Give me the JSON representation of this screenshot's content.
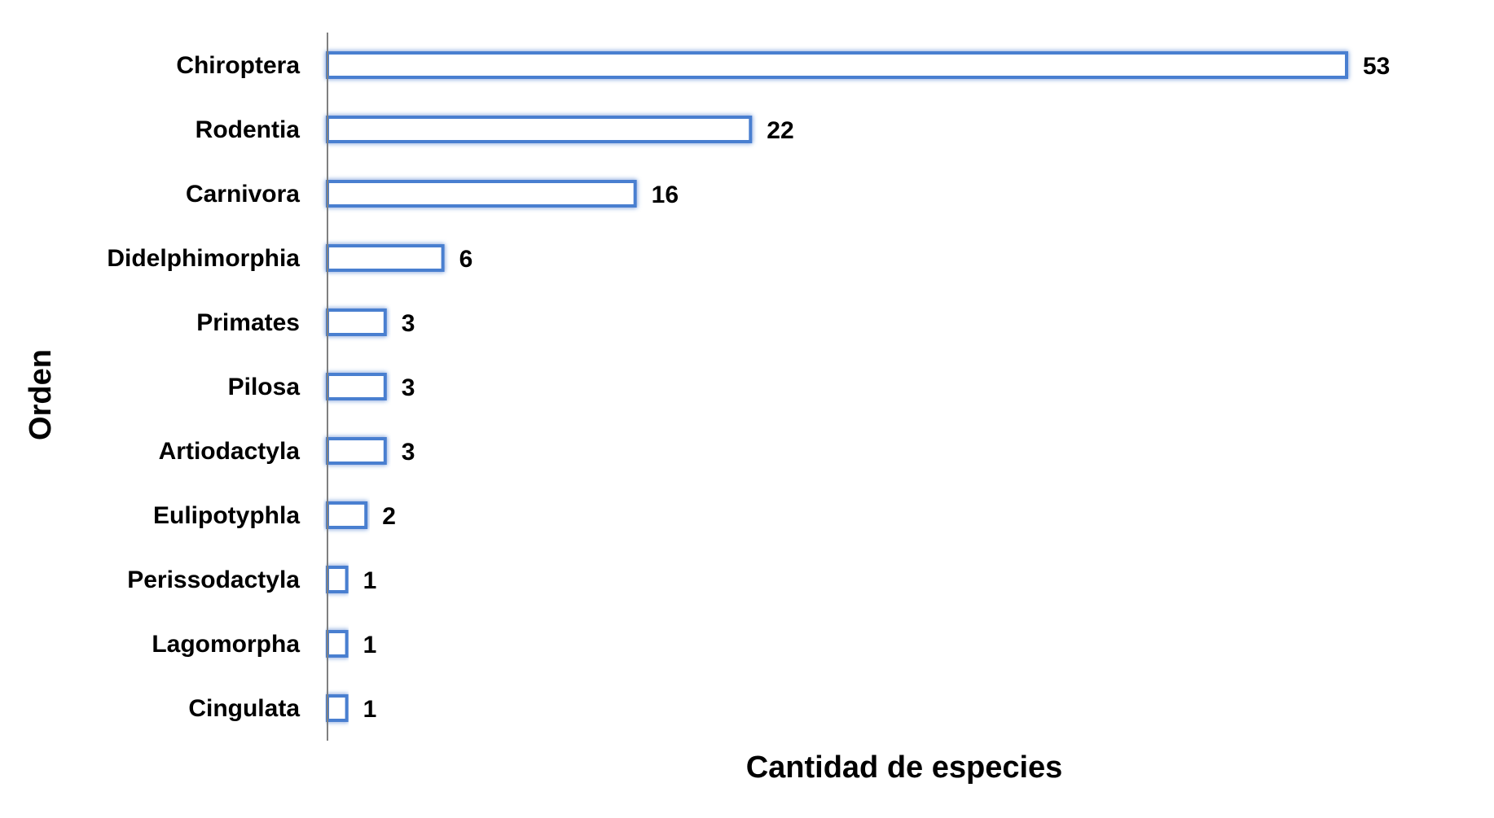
{
  "chart_data": {
    "type": "bar",
    "orientation": "horizontal",
    "title": "",
    "xlabel": "Cantidad de especies",
    "ylabel": "Orden",
    "categories": [
      "Chiroptera",
      "Rodentia",
      "Carnivora",
      "Didelphimorphia",
      "Primates",
      "Pilosa",
      "Artiodactyla",
      "Eulipotyphla",
      "Perissodactyla",
      "Lagomorpha",
      "Cingulata"
    ],
    "values": [
      53,
      22,
      16,
      6,
      3,
      3,
      3,
      2,
      1,
      1,
      1
    ],
    "xlim": [
      0,
      53
    ],
    "data_labels": true,
    "grid": false,
    "legend": "none",
    "bar_fill": "#ffffff",
    "bar_stroke": "#4a7fd0",
    "bar_glow": "#9ec0f0",
    "axis_color": "#808080"
  }
}
